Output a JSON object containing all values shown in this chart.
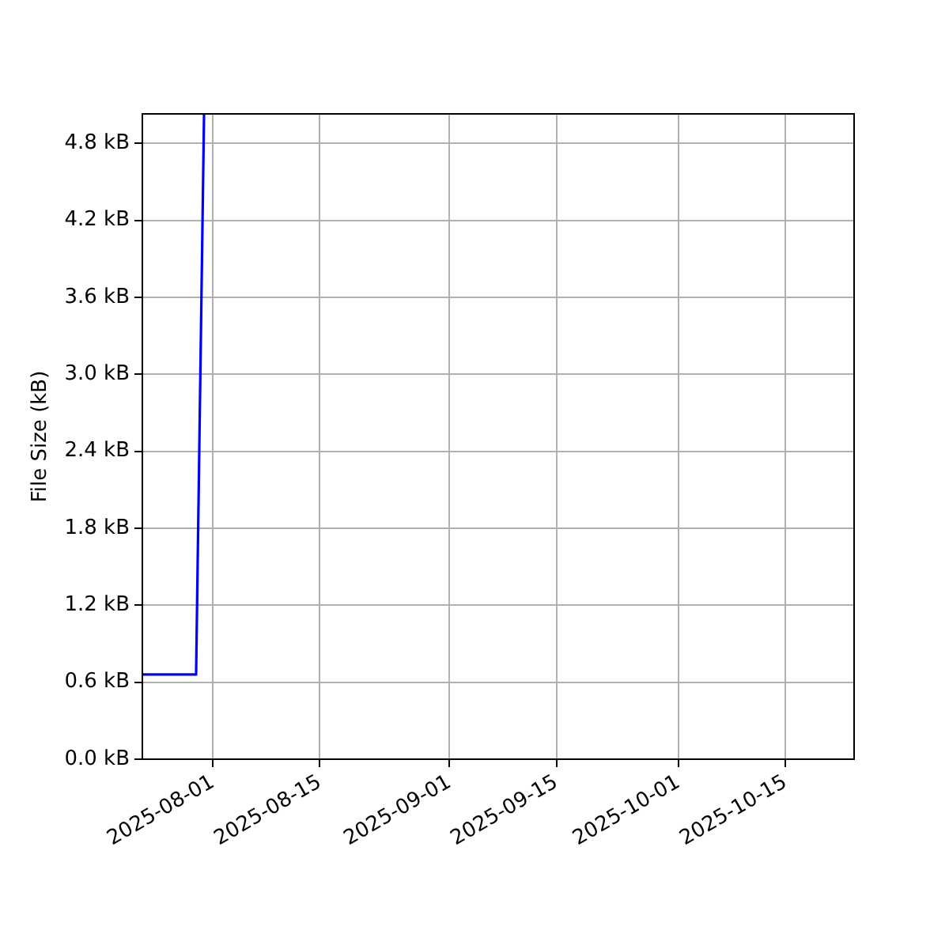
{
  "chart_data": {
    "type": "line",
    "ylabel": "File Size (kB)",
    "x": [
      "2025-07-22T18:00",
      "2025-07-29T19:00",
      "2025-07-30T20:00"
    ],
    "series": [
      {
        "color": "#0000ff",
        "values": [
          0.66,
          0.66,
          5.03
        ]
      }
    ],
    "xlim": [
      "2025-07-22T18:00",
      "2025-10-24"
    ],
    "xticks": [
      "2025-08-01",
      "2025-08-15",
      "2025-09-01",
      "2025-09-15",
      "2025-10-01",
      "2025-10-15"
    ],
    "ylim": [
      0,
      5.03
    ],
    "yticks": [
      {
        "value": 0,
        "label": "0.0 kB"
      },
      {
        "value": 0.6,
        "label": "0.6 kB"
      },
      {
        "value": 1.2,
        "label": "1.2 kB"
      },
      {
        "value": 1.8,
        "label": "1.8 kB"
      },
      {
        "value": 2.4,
        "label": "2.4 kB"
      },
      {
        "value": 3.0,
        "label": "3.0 kB"
      },
      {
        "value": 3.6,
        "label": "3.6 kB"
      },
      {
        "value": 4.2,
        "label": "4.2 kB"
      },
      {
        "value": 4.8,
        "label": "4.8 kB"
      }
    ],
    "grid": true
  }
}
